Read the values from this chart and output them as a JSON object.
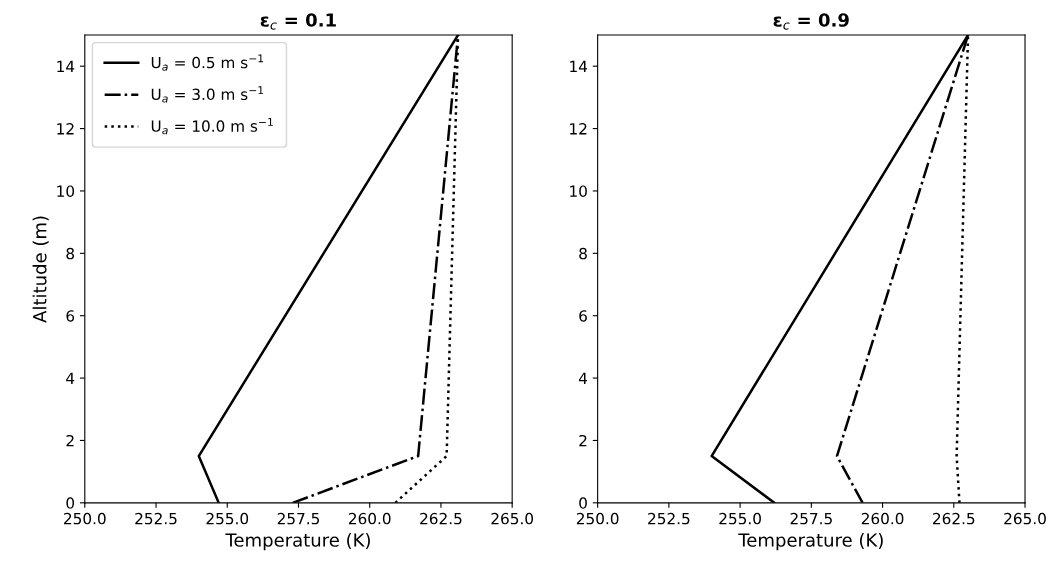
{
  "chart_data": [
    {
      "type": "line",
      "title": "ε$_{c}$ = 0.1",
      "xlabel": "Temperature (K)",
      "ylabel": "Altitude (m)",
      "legend": "top left",
      "grid": false,
      "marker": "none",
      "xlim": [
        250,
        265
      ],
      "xticks": [
        {
          "value": 250,
          "label": "250.0"
        },
        {
          "value": 252.5,
          "label": "252.5"
        },
        {
          "value": 255,
          "label": "255.0"
        },
        {
          "value": 257.5,
          "label": "257.5"
        },
        {
          "value": 260,
          "label": "260.0"
        },
        {
          "value": 262.5,
          "label": "262.5"
        },
        {
          "value": 265,
          "label": "265.0"
        }
      ],
      "ylim": [
        0,
        15
      ],
      "yticks": [
        0,
        2,
        4,
        6,
        8,
        10,
        12,
        14
      ],
      "series": [
        {
          "name": "U$_{a}$ = 0.5 m s$^{−1}$",
          "color": "#000000",
          "line_style": "solid",
          "x": [
            254.7,
            254.0,
            263.1
          ],
          "values": [
            0,
            1.5,
            15
          ]
        },
        {
          "name": "U$_{a}$ = 3.0 m s$^{−1}$",
          "color": "#000000",
          "line_style": "dashdot",
          "x": [
            257.3,
            261.7,
            263.1
          ],
          "values": [
            0,
            1.5,
            15
          ]
        },
        {
          "name": "U$_{a}$ = 10.0 m s$^{−1}$",
          "color": "#000000",
          "line_style": "dotted",
          "x": [
            260.9,
            262.7,
            263.1
          ],
          "values": [
            0,
            1.5,
            15
          ]
        }
      ]
    },
    {
      "type": "line",
      "title": "ε$_{c}$ = 0.9",
      "xlabel": "Temperature (K)",
      "legend": false,
      "grid": false,
      "marker": "none",
      "xlim": [
        250,
        265
      ],
      "xticks": [
        {
          "value": 250,
          "label": "250.0"
        },
        {
          "value": 252.5,
          "label": "252.5"
        },
        {
          "value": 255,
          "label": "255.0"
        },
        {
          "value": 257.5,
          "label": "257.5"
        },
        {
          "value": 260,
          "label": "260.0"
        },
        {
          "value": 262.5,
          "label": "262.5"
        },
        {
          "value": 265,
          "label": "265.0"
        }
      ],
      "ylim": [
        0,
        15
      ],
      "yticks": [
        0,
        2,
        4,
        6,
        8,
        10,
        12,
        14
      ],
      "series": [
        {
          "color": "#000000",
          "line_style": "solid",
          "x": [
            256.2,
            254.0,
            263.0
          ],
          "values": [
            0,
            1.5,
            15
          ]
        },
        {
          "color": "#000000",
          "line_style": "dashdot",
          "x": [
            259.3,
            258.4,
            263.0
          ],
          "values": [
            0,
            1.5,
            15
          ]
        },
        {
          "color": "#000000",
          "line_style": "dotted",
          "x": [
            262.7,
            262.6,
            263.0
          ],
          "values": [
            0,
            1.5,
            15
          ]
        }
      ]
    }
  ]
}
